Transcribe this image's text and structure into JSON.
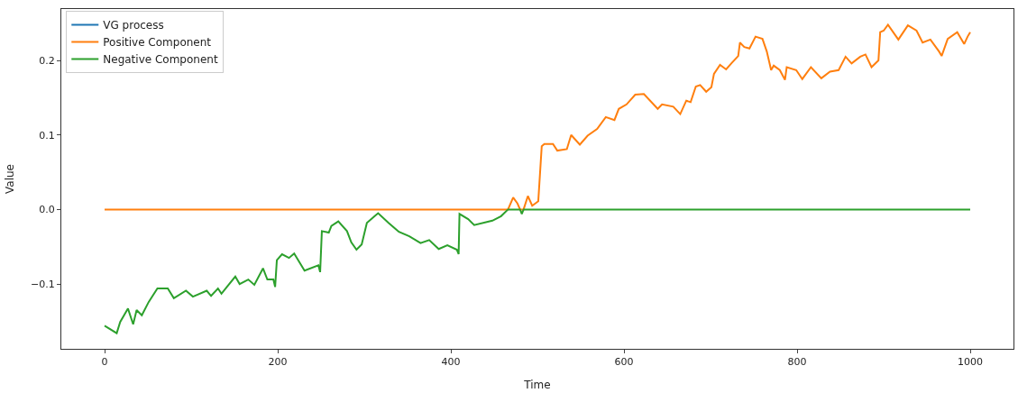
{
  "chart_data": {
    "type": "line",
    "xlabel": "Time",
    "ylabel": "Value",
    "xlim": [
      -50,
      1050
    ],
    "xticks": [
      0,
      200,
      400,
      600,
      800,
      1000
    ],
    "ylim": [
      -0.187,
      0.269
    ],
    "yticks": [
      {
        "value": -0.1,
        "label": "−0.1"
      },
      {
        "value": 0.0,
        "label": "0.0"
      },
      {
        "value": 0.1,
        "label": "0.1"
      },
      {
        "value": 0.2,
        "label": "0.2"
      }
    ],
    "legend": "top left",
    "marker": "none",
    "line_style": "solid",
    "series": [
      {
        "name": "VG process",
        "color": "#1f77b4"
      },
      {
        "name": "Positive Component",
        "color": "#ff7f0e",
        "x": [
          0,
          466,
          472,
          477,
          480,
          484,
          489,
          494,
          501,
          505,
          508,
          518,
          523,
          534,
          539,
          549,
          558,
          569,
          579,
          589,
          594,
          603,
          613,
          623,
          639,
          644,
          657,
          665,
          672,
          677,
          683,
          688,
          695,
          701,
          704,
          711,
          718,
          724,
          732,
          734,
          739,
          745,
          752,
          760,
          765,
          770,
          773,
          780,
          786,
          788,
          799,
          806,
          816,
          828,
          838,
          848,
          856,
          863,
          873,
          879,
          886,
          894,
          896,
          900,
          905,
          917,
          928,
          938,
          945,
          954,
          964,
          967,
          974,
          985,
          993,
          997,
          1000
        ],
        "values": [
          0,
          0,
          0.016,
          0.008,
          0,
          0,
          0.018,
          0.005,
          0.011,
          0.085,
          0.088,
          0.088,
          0.079,
          0.081,
          0.1,
          0.087,
          0.099,
          0.108,
          0.124,
          0.12,
          0.135,
          0.141,
          0.154,
          0.155,
          0.135,
          0.141,
          0.138,
          0.128,
          0.146,
          0.144,
          0.165,
          0.167,
          0.158,
          0.164,
          0.182,
          0.194,
          0.188,
          0.196,
          0.206,
          0.224,
          0.218,
          0.216,
          0.232,
          0.229,
          0.212,
          0.187,
          0.193,
          0.187,
          0.174,
          0.191,
          0.187,
          0.175,
          0.191,
          0.176,
          0.185,
          0.187,
          0.205,
          0.196,
          0.205,
          0.208,
          0.191,
          0.2,
          0.238,
          0.24,
          0.248,
          0.228,
          0.247,
          0.24,
          0.224,
          0.228,
          0.212,
          0.206,
          0.229,
          0.238,
          0.222,
          0.232,
          0.238
        ]
      },
      {
        "name": "Negative Component",
        "color": "#2ca02c",
        "x": [
          0,
          14,
          18,
          27,
          33,
          37,
          43,
          51,
          61,
          73,
          80,
          94,
          102,
          118,
          123,
          131,
          135,
          151,
          156,
          166,
          173,
          183,
          188,
          195,
          197,
          199,
          205,
          213,
          219,
          231,
          247,
          249,
          251,
          259,
          262,
          270,
          280,
          285,
          291,
          297,
          303,
          312,
          316,
          328,
          340,
          352,
          365,
          375,
          386,
          396,
          407,
          409,
          410,
          420,
          427,
          448,
          458,
          466,
          480,
          482,
          484,
          1000
        ],
        "values": [
          -0.156,
          -0.166,
          -0.151,
          -0.133,
          -0.154,
          -0.135,
          -0.142,
          -0.124,
          -0.106,
          -0.106,
          -0.119,
          -0.109,
          -0.117,
          -0.109,
          -0.116,
          -0.106,
          -0.113,
          -0.09,
          -0.1,
          -0.094,
          -0.101,
          -0.079,
          -0.094,
          -0.094,
          -0.104,
          -0.068,
          -0.06,
          -0.065,
          -0.059,
          -0.082,
          -0.075,
          -0.084,
          -0.029,
          -0.031,
          -0.022,
          -0.016,
          -0.029,
          -0.044,
          -0.054,
          -0.047,
          -0.018,
          -0.009,
          -0.005,
          -0.018,
          -0.03,
          -0.036,
          -0.045,
          -0.041,
          -0.053,
          -0.048,
          -0.054,
          -0.06,
          -0.006,
          -0.013,
          -0.021,
          -0.015,
          -0.009,
          0,
          0,
          -0.006,
          0,
          0
        ]
      }
    ]
  }
}
